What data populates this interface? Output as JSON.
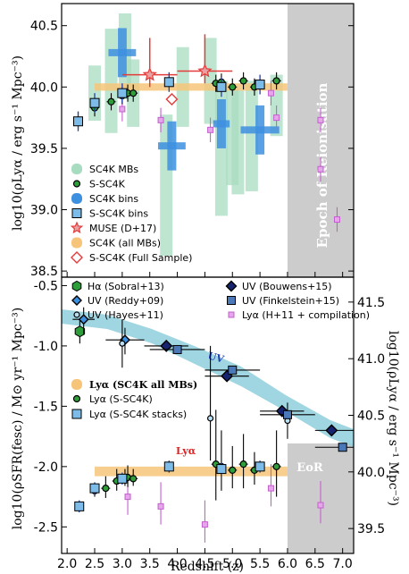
{
  "colors": {
    "green": "#2e9e3a",
    "mint": "#a8dcc0",
    "blue": "#3d8fdf",
    "lightblue": "#7dbbe8",
    "red": "#e53a3a",
    "orange": "#f7c57a",
    "magenta": "#c45fcf",
    "darkblue": "#162470",
    "cyanband": "#8fcfdc",
    "gray": "#cccccc"
  },
  "chart_data": [
    {
      "type": "scatter",
      "ylabel": "log10(ρLyα / erg s⁻¹ Mpc⁻³)",
      "xlim": [
        1.9,
        7.2
      ],
      "ylim": [
        38.45,
        40.68
      ],
      "yticks": [
        "38.5",
        "39.0",
        "39.5",
        "40.0",
        "40.5"
      ],
      "shaded_region": {
        "x_from": 6.0,
        "x_to": 7.2,
        "label": "Epoch of Reionisation"
      },
      "series": [
        {
          "name": "SC4K MBs",
          "points": [
            {
              "x": 2.5,
              "y": 39.95
            },
            {
              "x": 2.8,
              "y": 40.05
            },
            {
              "x": 3.05,
              "y": 40.25
            },
            {
              "x": 3.2,
              "y": 39.95
            },
            {
              "x": 3.8,
              "y": 39.2
            },
            {
              "x": 4.1,
              "y": 40.0
            },
            {
              "x": 4.6,
              "y": 40.05
            },
            {
              "x": 4.8,
              "y": 39.5
            },
            {
              "x": 5.0,
              "y": 39.6
            },
            {
              "x": 5.1,
              "y": 39.55
            },
            {
              "x": 5.35,
              "y": 39.6
            },
            {
              "x": 5.8,
              "y": 39.85
            }
          ]
        },
        {
          "name": "S-SC4K",
          "points": [
            {
              "x": 2.2,
              "y": 39.73
            },
            {
              "x": 2.5,
              "y": 39.83
            },
            {
              "x": 2.8,
              "y": 39.88
            },
            {
              "x": 3.0,
              "y": 39.93
            },
            {
              "x": 3.1,
              "y": 39.95
            },
            {
              "x": 3.2,
              "y": 39.95
            },
            {
              "x": 4.7,
              "y": 40.03
            },
            {
              "x": 4.8,
              "y": 40.04
            },
            {
              "x": 5.0,
              "y": 40.0
            },
            {
              "x": 5.2,
              "y": 40.05
            },
            {
              "x": 5.4,
              "y": 40.0
            },
            {
              "x": 5.8,
              "y": 40.05
            }
          ]
        },
        {
          "name": "SC4K bins",
          "points": [
            {
              "x": 3.0,
              "y": 40.28
            },
            {
              "x": 3.9,
              "y": 39.52
            },
            {
              "x": 4.8,
              "y": 39.7
            },
            {
              "x": 5.5,
              "y": 39.65
            }
          ]
        },
        {
          "name": "S-SC4K bins",
          "points": [
            {
              "x": 2.2,
              "y": 39.72
            },
            {
              "x": 2.5,
              "y": 39.87
            },
            {
              "x": 3.0,
              "y": 39.95
            },
            {
              "x": 3.85,
              "y": 40.04
            },
            {
              "x": 4.8,
              "y": 40.0
            },
            {
              "x": 5.5,
              "y": 40.02
            }
          ]
        },
        {
          "name": "MUSE (D+17)",
          "points": [
            {
              "x": 3.5,
              "y": 40.1
            },
            {
              "x": 4.5,
              "y": 40.13
            }
          ]
        },
        {
          "name": "SC4K (all MBs)",
          "points": [
            {
              "x": 2.5,
              "y": 39.99
            },
            {
              "x": 6.0,
              "y": 40.01
            }
          ]
        },
        {
          "name": "S-SC4K (Full Sample)",
          "points": [
            {
              "x": 3.9,
              "y": 39.9
            }
          ]
        },
        {
          "name": "",
          "points": [
            {
              "x": 3.0,
              "y": 39.82
            },
            {
              "x": 3.7,
              "y": 39.73
            },
            {
              "x": 4.6,
              "y": 39.65
            },
            {
              "x": 5.7,
              "y": 39.95
            },
            {
              "x": 5.8,
              "y": 39.75
            },
            {
              "x": 6.6,
              "y": 39.73
            },
            {
              "x": 6.6,
              "y": 39.33
            },
            {
              "x": 6.9,
              "y": 38.92
            }
          ]
        }
      ],
      "legend": [
        "SC4K MBs",
        "S-SC4K",
        "SC4K bins",
        "S-SC4K bins",
        "MUSE (D+17)",
        "SC4K (all MBs)",
        "S-SC4K (Full Sample)"
      ]
    },
    {
      "type": "scatter",
      "xlabel": "Redshift (z)",
      "ylabel": "log10(ρSFR(fesc) / M⊙ yr⁻¹ Mpc⁻³)",
      "ylabel_right": "log10(ρLyα / erg s⁻¹ Mpc⁻³)",
      "xlim": [
        1.9,
        7.2
      ],
      "ylim": [
        -2.72,
        -0.43
      ],
      "xticks": [
        "2.0",
        "2.5",
        "3.0",
        "3.5",
        "4.0",
        "4.5",
        "5.0",
        "5.5",
        "6.0",
        "6.5",
        "7.0"
      ],
      "yticks": [
        "-2.5",
        "-2.0",
        "-1.5",
        "-1.0",
        "-0.5"
      ],
      "yticks_right": [
        "39.5",
        "40.0",
        "40.5",
        "41.0",
        "41.5"
      ],
      "shaded_region": {
        "x_from": 6.0,
        "x_to": 7.2,
        "label": "EoR"
      },
      "band_annotations": [
        "UV",
        "Lyα"
      ],
      "series": [
        {
          "name": "Hα (Sobral+13)",
          "points": [
            {
              "x": 2.23,
              "y": -0.88
            }
          ]
        },
        {
          "name": "UV (Reddy+09)",
          "points": [
            {
              "x": 2.3,
              "y": -0.78
            },
            {
              "x": 3.05,
              "y": -0.95
            }
          ]
        },
        {
          "name": "UV (Hayes+11)",
          "points": [
            {
              "x": 3.0,
              "y": -0.98
            },
            {
              "x": 4.6,
              "y": -1.6
            },
            {
              "x": 6.0,
              "y": -1.62
            }
          ]
        },
        {
          "name": "UV (Bouwens+15)",
          "points": [
            {
              "x": 3.8,
              "y": -1.0
            },
            {
              "x": 4.9,
              "y": -1.25
            },
            {
              "x": 5.9,
              "y": -1.54
            },
            {
              "x": 6.8,
              "y": -1.7
            }
          ]
        },
        {
          "name": "UV (Finkelstein+15)",
          "points": [
            {
              "x": 4.0,
              "y": -1.03
            },
            {
              "x": 5.0,
              "y": -1.2
            },
            {
              "x": 6.0,
              "y": -1.57
            },
            {
              "x": 7.0,
              "y": -1.84
            }
          ]
        },
        {
          "name": "Lyα (H+11 + compilation)",
          "points": [
            {
              "x": 3.1,
              "y": -2.25
            },
            {
              "x": 3.7,
              "y": -2.33
            },
            {
              "x": 4.5,
              "y": -2.48
            },
            {
              "x": 5.7,
              "y": -2.18
            },
            {
              "x": 6.6,
              "y": -2.32
            }
          ]
        },
        {
          "name": "Lyα (SC4K all MBs)",
          "points": [
            {
              "x": 2.5,
              "y": -2.05
            },
            {
              "x": 6.0,
              "y": -2.03
            }
          ]
        },
        {
          "name": "Lyα (S-SC4K)",
          "points": [
            {
              "x": 2.5,
              "y": -2.2
            },
            {
              "x": 2.7,
              "y": -2.18
            },
            {
              "x": 2.9,
              "y": -2.12
            },
            {
              "x": 3.05,
              "y": -2.1
            },
            {
              "x": 3.1,
              "y": -2.09
            },
            {
              "x": 3.2,
              "y": -2.1
            },
            {
              "x": 4.7,
              "y": -1.98
            },
            {
              "x": 4.8,
              "y": -2.0
            },
            {
              "x": 5.0,
              "y": -2.03
            },
            {
              "x": 5.2,
              "y": -1.98
            },
            {
              "x": 5.4,
              "y": -2.03
            },
            {
              "x": 5.8,
              "y": -2.0
            }
          ]
        },
        {
          "name": "Lyα (S-SC4K stacks)",
          "points": [
            {
              "x": 2.22,
              "y": -2.33
            },
            {
              "x": 2.5,
              "y": -2.18
            },
            {
              "x": 3.0,
              "y": -2.1
            },
            {
              "x": 3.85,
              "y": -2.0
            },
            {
              "x": 4.8,
              "y": -2.02
            },
            {
              "x": 5.5,
              "y": -2.0
            }
          ]
        }
      ],
      "legend": [
        "Hα (Sobral+13)",
        "UV (Reddy+09)",
        "UV (Hayes+11)",
        "UV (Bouwens+15)",
        "UV (Finkelstein+15)",
        "Lyα (H+11 + compilation)",
        "Lyα (SC4K all MBs)",
        "Lyα (S-SC4K)",
        "Lyα (S-SC4K stacks)"
      ]
    }
  ]
}
